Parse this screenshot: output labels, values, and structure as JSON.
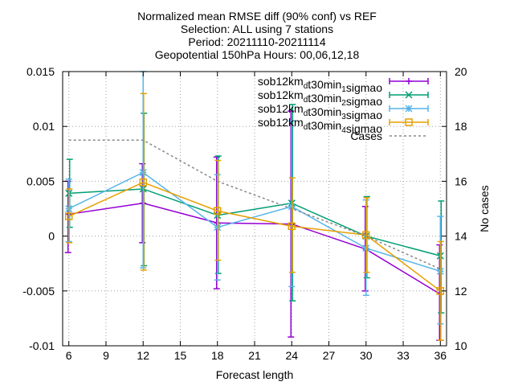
{
  "chart_data": {
    "type": "line",
    "title": [
      "Normalized mean RMSE diff (90% conf) vs REF",
      "Selection: ALL using     7 stations",
      "Period: 20211110-20211114",
      "Geopotential 150hPa   Hours: 00,06,12,18"
    ],
    "xlabel": "Forecast length",
    "ylabel": "",
    "y2label": "No cases",
    "xlim": [
      5.5,
      36.5
    ],
    "ylim": [
      -0.01,
      0.015
    ],
    "y2lim": [
      10,
      20
    ],
    "xticks": [
      6,
      9,
      12,
      15,
      18,
      21,
      24,
      27,
      30,
      33,
      36
    ],
    "yticks": [
      -0.01,
      -0.005,
      0,
      0.005,
      0.01,
      0.015
    ],
    "ytick_labels": [
      "-0.01",
      "-0.005",
      "0",
      "0.005",
      "0.01",
      "0.015"
    ],
    "y2ticks": [
      10,
      12,
      14,
      16,
      18,
      20
    ],
    "legend_position": "top-right",
    "series": [
      {
        "name_main": "sob12km",
        "name_sub1": "d",
        "name_mid": "t30min",
        "name_sub2": "1",
        "name_end": "sigmao",
        "color": "#9400d3",
        "marker": "plus",
        "x": [
          6,
          12,
          18,
          24,
          30,
          36
        ],
        "y": [
          0.002,
          0.003,
          0.0012,
          0.0011,
          -0.0012,
          -0.0053
        ],
        "err_low": [
          -0.0015,
          -0.0006,
          -0.0048,
          -0.0092,
          -0.005,
          -0.0095
        ],
        "err_high": [
          0.005,
          0.0066,
          0.0072,
          0.0114,
          0.0027,
          -0.0008
        ]
      },
      {
        "name_main": "sob12km",
        "name_sub1": "d",
        "name_mid": "t30min",
        "name_sub2": "2",
        "name_end": "sigmao",
        "color": "#009e73",
        "marker": "cross",
        "x": [
          6,
          12,
          18,
          24,
          30,
          36
        ],
        "y": [
          0.0039,
          0.0043,
          0.0019,
          0.003,
          0.0,
          -0.0018
        ],
        "err_low": [
          0.0008,
          -0.0027,
          -0.0034,
          -0.0059,
          -0.0038,
          -0.007
        ],
        "err_high": [
          0.007,
          0.0112,
          0.0073,
          0.012,
          0.0036,
          0.0032
        ]
      },
      {
        "name_main": "sob12km",
        "name_sub1": "d",
        "name_mid": "t30min",
        "name_sub2": "3",
        "name_end": "sigmao",
        "color": "#56b4e9",
        "marker": "star",
        "x": [
          6,
          12,
          18,
          24,
          30,
          36
        ],
        "y": [
          0.0025,
          0.0058,
          0.0008,
          0.0027,
          -0.0011,
          -0.0032
        ],
        "err_low": [
          -0.0005,
          -0.0029,
          -0.004,
          -0.0046,
          -0.0054,
          -0.008
        ],
        "err_high": [
          0.0052,
          0.015,
          0.0056,
          0.0105,
          0.0033,
          0.0018
        ]
      },
      {
        "name_main": "sob12km",
        "name_sub1": "d",
        "name_mid": "t30min",
        "name_sub2": "4",
        "name_end": "sigmao",
        "color": "#e69f00",
        "marker": "square",
        "x": [
          6,
          12,
          18,
          24,
          30,
          36
        ],
        "y": [
          0.0018,
          0.0049,
          0.0023,
          0.0009,
          0.0001,
          -0.005
        ],
        "err_low": [
          -0.0006,
          -0.0031,
          -0.0022,
          -0.0033,
          -0.0033,
          -0.0095
        ],
        "err_high": [
          0.0043,
          0.013,
          0.0069,
          0.0053,
          0.0035,
          -0.0005
        ]
      }
    ],
    "cases": {
      "name": "Cases",
      "color": "#888888",
      "axis": "y2",
      "x": [
        6,
        12,
        18,
        24,
        30,
        36
      ],
      "y": [
        17.5,
        17.5,
        16.0,
        15.0,
        14.0,
        12.8
      ]
    }
  }
}
